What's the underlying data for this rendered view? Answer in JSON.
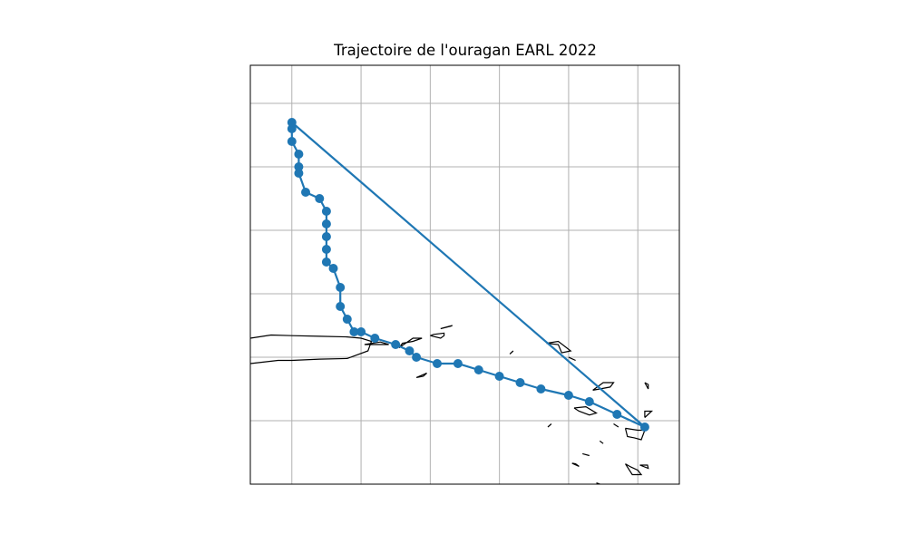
{
  "title": "Trajectoire de l'ouragan EARL 2022",
  "colors": {
    "track": "#1f77b4",
    "grid": "#b0b0b0",
    "coast": "#000000",
    "frame": "#000000"
  },
  "map": {
    "lon_range": [
      -67.6,
      -61.4
    ],
    "lat_range": [
      16.0,
      22.6
    ],
    "grid_lons": [
      -67,
      -66,
      -65,
      -64,
      -63,
      -62
    ],
    "grid_lats": [
      17,
      18,
      19,
      20,
      21,
      22
    ]
  },
  "track": {
    "lons": [
      -61.9,
      -62.3,
      -62.7,
      -63.0,
      -63.4,
      -63.7,
      -64.0,
      -64.3,
      -64.6,
      -64.9,
      -65.2,
      -65.3,
      -65.5,
      -65.8,
      -66.0,
      -66.1,
      -66.2,
      -66.3,
      -66.3,
      -66.4,
      -66.5,
      -66.5,
      -66.5,
      -66.5,
      -66.5,
      -66.6,
      -66.8,
      -66.9,
      -66.9,
      -66.9,
      -67.0,
      -67.0,
      -67.0
    ],
    "lats": [
      16.9,
      17.1,
      17.3,
      17.4,
      17.5,
      17.6,
      17.7,
      17.8,
      17.9,
      17.9,
      18.0,
      18.1,
      18.2,
      18.3,
      18.4,
      18.4,
      18.6,
      18.8,
      19.1,
      19.4,
      19.5,
      19.7,
      19.9,
      20.1,
      20.3,
      20.5,
      20.6,
      20.9,
      21.0,
      21.2,
      21.4,
      21.6,
      21.7
    ]
  },
  "coastlines": [
    [
      [
        -67.6,
        18.3
      ],
      [
        -67.3,
        18.35
      ],
      [
        -67.0,
        18.34
      ],
      [
        -66.6,
        18.33
      ],
      [
        -66.2,
        18.32
      ],
      [
        -66.0,
        18.3
      ],
      [
        -65.85,
        18.25
      ],
      [
        -65.9,
        18.1
      ],
      [
        -66.2,
        17.98
      ],
      [
        -66.6,
        17.97
      ],
      [
        -67.0,
        17.95
      ],
      [
        -67.2,
        17.95
      ],
      [
        -67.6,
        17.9
      ]
    ],
    [
      [
        -65.95,
        18.2
      ],
      [
        -65.7,
        18.2
      ],
      [
        -65.6,
        18.2
      ],
      [
        -65.72,
        18.24
      ],
      [
        -65.95,
        18.2
      ]
    ],
    [
      [
        -65.45,
        18.15
      ],
      [
        -65.4,
        18.22
      ],
      [
        -65.25,
        18.25
      ],
      [
        -65.12,
        18.3
      ],
      [
        -65.25,
        18.3
      ],
      [
        -65.45,
        18.15
      ]
    ],
    [
      [
        -65.0,
        18.34
      ],
      [
        -64.95,
        18.36
      ],
      [
        -64.8,
        18.38
      ],
      [
        -64.8,
        18.34
      ],
      [
        -64.85,
        18.3
      ],
      [
        -65.0,
        18.34
      ]
    ],
    [
      [
        -64.85,
        18.45
      ],
      [
        -64.7,
        18.49
      ],
      [
        -64.68,
        18.5
      ],
      [
        -64.85,
        18.45
      ]
    ],
    [
      [
        -65.2,
        17.68
      ],
      [
        -65.1,
        17.7
      ],
      [
        -65.05,
        17.75
      ],
      [
        -65.2,
        17.68
      ]
    ],
    [
      [
        -63.32,
        18.22
      ],
      [
        -63.15,
        18.2
      ],
      [
        -63.1,
        18.07
      ],
      [
        -62.97,
        18.1
      ],
      [
        -63.15,
        18.25
      ],
      [
        -63.32,
        18.22
      ]
    ],
    [
      [
        -63.0,
        18.0
      ],
      [
        -62.96,
        17.98
      ],
      [
        -62.9,
        17.95
      ],
      [
        -63.0,
        18.0
      ]
    ],
    [
      [
        -63.85,
        18.05
      ],
      [
        -63.8,
        18.1
      ],
      [
        -63.85,
        18.05
      ]
    ],
    [
      [
        -62.92,
        17.2
      ],
      [
        -62.85,
        17.15
      ],
      [
        -62.7,
        17.09
      ],
      [
        -62.6,
        17.12
      ],
      [
        -62.75,
        17.22
      ],
      [
        -62.92,
        17.2
      ]
    ],
    [
      [
        -62.65,
        17.48
      ],
      [
        -62.55,
        17.5
      ],
      [
        -62.4,
        17.53
      ],
      [
        -62.35,
        17.6
      ],
      [
        -62.5,
        17.6
      ],
      [
        -62.65,
        17.48
      ]
    ],
    [
      [
        -63.3,
        16.9
      ],
      [
        -63.25,
        16.95
      ],
      [
        -63.3,
        16.9
      ]
    ],
    [
      [
        -62.18,
        16.88
      ],
      [
        -62.15,
        16.75
      ],
      [
        -62.05,
        16.73
      ],
      [
        -61.95,
        16.7
      ],
      [
        -61.9,
        16.85
      ],
      [
        -62.0,
        16.85
      ],
      [
        -62.18,
        16.88
      ]
    ],
    [
      [
        -61.9,
        17.6
      ],
      [
        -61.85,
        17.5
      ],
      [
        -61.85,
        17.57
      ],
      [
        -61.9,
        17.6
      ]
    ],
    [
      [
        -61.9,
        17.05
      ],
      [
        -61.9,
        17.15
      ],
      [
        -61.8,
        17.15
      ],
      [
        -61.9,
        17.05
      ]
    ],
    [
      [
        -62.35,
        16.95
      ],
      [
        -62.28,
        16.9
      ],
      [
        -62.35,
        16.95
      ]
    ],
    [
      [
        -62.55,
        16.68
      ],
      [
        -62.5,
        16.64
      ],
      [
        -62.55,
        16.68
      ]
    ],
    [
      [
        -62.8,
        16.48
      ],
      [
        -62.7,
        16.45
      ],
      [
        -62.8,
        16.48
      ]
    ],
    [
      [
        -62.95,
        16.33
      ],
      [
        -62.9,
        16.32
      ],
      [
        -62.85,
        16.28
      ],
      [
        -62.95,
        16.33
      ]
    ],
    [
      [
        -62.18,
        16.32
      ],
      [
        -62.1,
        16.27
      ],
      [
        -62.0,
        16.22
      ],
      [
        -61.95,
        16.15
      ],
      [
        -62.08,
        16.15
      ],
      [
        -62.18,
        16.32
      ]
    ],
    [
      [
        -61.97,
        16.3
      ],
      [
        -61.86,
        16.3
      ],
      [
        -61.85,
        16.25
      ],
      [
        -61.97,
        16.3
      ]
    ],
    [
      [
        -62.6,
        16.02
      ],
      [
        -62.55,
        16.0
      ],
      [
        -62.6,
        16.02
      ]
    ]
  ]
}
